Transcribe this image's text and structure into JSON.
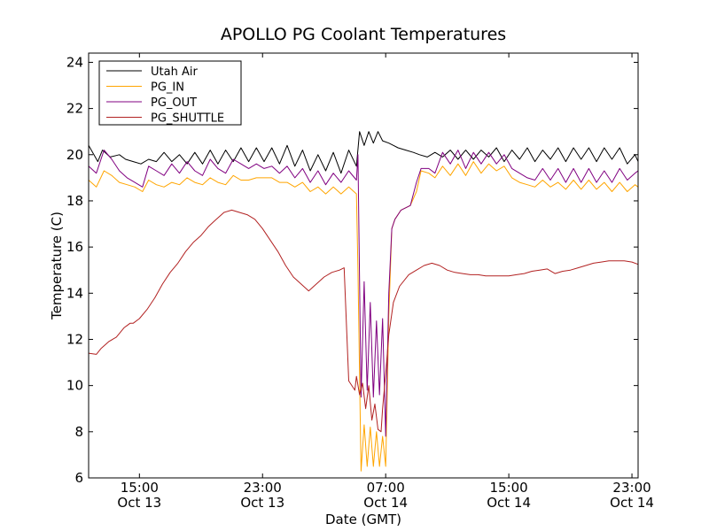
{
  "chart_data": {
    "type": "line",
    "title": "APOLLO PG Coolant Temperatures",
    "xlabel": "Date (GMT)",
    "ylabel": "Temperature (C)",
    "xlim": [
      11.7,
      47.4
    ],
    "ylim": [
      6,
      24.4
    ],
    "x_unit": "hours since Oct 13 00:00 GMT",
    "yticks": [
      6,
      8,
      10,
      12,
      14,
      16,
      18,
      20,
      22,
      24
    ],
    "xticks": [
      {
        "x": 15,
        "line1": "15:00",
        "line2": "Oct 13"
      },
      {
        "x": 23,
        "line1": "23:00",
        "line2": "Oct 13"
      },
      {
        "x": 31,
        "line1": "07:00",
        "line2": "Oct 14"
      },
      {
        "x": 39,
        "line1": "15:00",
        "line2": "Oct 14"
      },
      {
        "x": 47,
        "line1": "23:00",
        "line2": "Oct 14"
      }
    ],
    "legend_position": "top-left",
    "grid": false,
    "series": [
      {
        "name": "Utah Air",
        "color": "#000000",
        "x": [
          11.7,
          12.3,
          12.6,
          13.1,
          13.7,
          14.1,
          14.6,
          15.1,
          15.6,
          16.1,
          16.6,
          17.1,
          17.6,
          18.1,
          18.6,
          19.1,
          19.6,
          20.1,
          20.6,
          21.1,
          21.6,
          22.1,
          22.6,
          23.1,
          23.6,
          24.1,
          24.6,
          25.1,
          25.6,
          26.1,
          26.6,
          27.1,
          27.6,
          28.1,
          28.6,
          29.1,
          29.3,
          29.6,
          29.9,
          30.2,
          30.5,
          30.8,
          31.2,
          31.5,
          31.8,
          32.3,
          32.8,
          33.2,
          33.7,
          34.2,
          34.7,
          35.2,
          35.7,
          36.2,
          36.7,
          37.2,
          37.7,
          38.2,
          38.7,
          39.2,
          39.7,
          40.2,
          40.7,
          41.2,
          41.7,
          42.2,
          42.7,
          43.2,
          43.7,
          44.2,
          44.7,
          45.2,
          45.7,
          46.2,
          46.7,
          47.2,
          47.4
        ],
        "y": [
          20.4,
          19.7,
          20.2,
          19.9,
          20.0,
          19.8,
          19.7,
          19.6,
          19.8,
          19.7,
          20.1,
          19.7,
          20.0,
          19.6,
          20.1,
          19.6,
          20.2,
          19.6,
          20.2,
          19.7,
          20.3,
          19.7,
          20.3,
          19.7,
          20.3,
          19.6,
          20.4,
          19.5,
          20.2,
          19.3,
          20.0,
          19.3,
          20.1,
          19.2,
          20.2,
          19.5,
          21.0,
          20.4,
          21.0,
          20.5,
          21.0,
          20.6,
          20.5,
          20.4,
          20.3,
          20.2,
          20.1,
          20.0,
          19.9,
          20.1,
          19.9,
          20.2,
          19.8,
          20.2,
          19.8,
          20.2,
          19.9,
          20.3,
          19.7,
          20.2,
          19.8,
          20.3,
          19.7,
          20.2,
          19.8,
          20.3,
          19.7,
          20.3,
          19.8,
          20.3,
          19.7,
          20.3,
          19.8,
          20.3,
          19.6,
          20.0,
          19.7
        ]
      },
      {
        "name": "PG_IN",
        "color": "#ffa500",
        "x": [
          11.7,
          12.2,
          12.7,
          13.2,
          13.7,
          14.2,
          14.7,
          15.2,
          15.6,
          16.1,
          16.6,
          17.1,
          17.6,
          18.1,
          18.6,
          19.1,
          19.6,
          20.1,
          20.6,
          21.1,
          21.6,
          22.1,
          22.6,
          23.1,
          23.6,
          24.1,
          24.6,
          25.1,
          25.6,
          26.1,
          26.6,
          27.1,
          27.6,
          28.1,
          28.6,
          29.1,
          29.2,
          29.4,
          29.6,
          29.8,
          30.0,
          30.2,
          30.4,
          30.6,
          30.8,
          31.0,
          31.2,
          31.4,
          31.6,
          32.0,
          32.6,
          33.0,
          33.3,
          33.8,
          34.2,
          34.7,
          35.2,
          35.7,
          36.2,
          36.7,
          37.2,
          37.7,
          38.2,
          38.7,
          39.2,
          39.7,
          40.2,
          40.7,
          41.2,
          41.7,
          42.2,
          42.7,
          43.2,
          43.7,
          44.2,
          44.7,
          45.2,
          45.7,
          46.2,
          46.7,
          47.2,
          47.4
        ],
        "y": [
          18.9,
          18.6,
          19.3,
          19.1,
          18.8,
          18.7,
          18.6,
          18.4,
          18.9,
          18.7,
          18.6,
          18.8,
          18.7,
          19.0,
          18.8,
          18.7,
          19.0,
          18.8,
          18.7,
          19.1,
          18.9,
          18.9,
          19.0,
          19.0,
          19.0,
          18.8,
          18.8,
          18.6,
          18.8,
          18.4,
          18.6,
          18.3,
          18.6,
          18.3,
          18.6,
          18.3,
          15.0,
          6.3,
          8.3,
          6.5,
          8.2,
          6.5,
          8.0,
          6.5,
          7.8,
          6.5,
          13.0,
          16.8,
          17.2,
          17.6,
          17.8,
          18.4,
          19.3,
          19.2,
          19.0,
          19.5,
          19.1,
          19.6,
          19.1,
          19.7,
          19.2,
          19.6,
          19.3,
          19.5,
          19.0,
          18.8,
          18.7,
          18.6,
          18.9,
          18.6,
          18.8,
          18.5,
          18.9,
          18.5,
          18.9,
          18.5,
          18.8,
          18.4,
          18.8,
          18.4,
          18.7,
          18.6
        ]
      },
      {
        "name": "PG_OUT",
        "color": "#800080",
        "x": [
          11.7,
          12.2,
          12.7,
          13.2,
          13.7,
          14.2,
          14.7,
          15.2,
          15.6,
          16.1,
          16.6,
          17.1,
          17.6,
          18.1,
          18.6,
          19.1,
          19.6,
          20.1,
          20.6,
          21.1,
          21.6,
          22.1,
          22.6,
          23.1,
          23.6,
          24.1,
          24.6,
          25.1,
          25.6,
          26.1,
          26.6,
          27.1,
          27.6,
          28.1,
          28.6,
          29.1,
          29.2,
          29.4,
          29.6,
          29.8,
          30.0,
          30.2,
          30.4,
          30.6,
          30.8,
          31.0,
          31.2,
          31.4,
          31.6,
          32.0,
          32.6,
          33.0,
          33.3,
          33.8,
          34.2,
          34.7,
          35.2,
          35.7,
          36.2,
          36.7,
          37.2,
          37.7,
          38.2,
          38.7,
          39.2,
          39.7,
          40.2,
          40.7,
          41.2,
          41.7,
          42.2,
          42.7,
          43.2,
          43.7,
          44.2,
          44.7,
          45.2,
          45.7,
          46.2,
          46.7,
          47.2,
          47.4
        ],
        "y": [
          19.5,
          19.2,
          20.2,
          19.8,
          19.3,
          19.0,
          18.8,
          18.6,
          19.5,
          19.3,
          19.1,
          19.6,
          19.2,
          19.7,
          19.3,
          19.1,
          19.8,
          19.4,
          19.2,
          19.8,
          19.6,
          19.4,
          19.6,
          19.4,
          19.5,
          19.2,
          19.5,
          19.0,
          19.4,
          18.8,
          19.3,
          18.7,
          19.2,
          18.8,
          19.3,
          18.9,
          20.0,
          9.5,
          14.5,
          9.8,
          13.6,
          9.5,
          12.8,
          9.6,
          12.9,
          7.8,
          14.0,
          16.8,
          17.2,
          17.6,
          17.8,
          18.8,
          19.4,
          19.4,
          19.2,
          20.1,
          19.6,
          20.2,
          19.4,
          20.1,
          19.6,
          20.1,
          19.6,
          20.0,
          19.4,
          19.2,
          19.0,
          18.9,
          19.4,
          18.9,
          19.4,
          18.8,
          19.4,
          18.8,
          19.4,
          18.8,
          19.3,
          18.8,
          19.4,
          18.9,
          19.2,
          19.3
        ]
      },
      {
        "name": "PG_SHUTTLE",
        "color": "#b22222",
        "x": [
          11.7,
          12.2,
          12.5,
          13.0,
          13.5,
          14.0,
          14.2,
          14.4,
          14.6,
          15.0,
          15.5,
          16.0,
          16.5,
          17.0,
          17.5,
          18.0,
          18.5,
          19.0,
          19.5,
          20.0,
          20.5,
          21.0,
          21.5,
          22.0,
          22.5,
          23.0,
          23.5,
          24.0,
          24.5,
          25.0,
          25.5,
          26.0,
          26.5,
          27.0,
          27.5,
          28.0,
          28.3,
          28.6,
          29.0,
          29.1,
          29.3,
          29.5,
          29.7,
          29.9,
          30.1,
          30.3,
          30.5,
          30.7,
          30.8,
          31.0,
          31.2,
          31.5,
          31.9,
          32.5,
          33.0,
          33.5,
          34.0,
          34.5,
          35.0,
          35.5,
          36.0,
          36.5,
          37.0,
          37.5,
          38.0,
          38.5,
          39.0,
          39.5,
          40.0,
          40.5,
          41.0,
          41.5,
          42.0,
          42.5,
          43.0,
          43.5,
          44.0,
          44.5,
          45.0,
          45.5,
          46.0,
          46.5,
          47.0,
          47.4
        ],
        "y": [
          11.4,
          11.35,
          11.6,
          11.9,
          12.1,
          12.5,
          12.6,
          12.7,
          12.7,
          12.9,
          13.3,
          13.8,
          14.4,
          14.9,
          15.3,
          15.8,
          16.2,
          16.5,
          16.9,
          17.2,
          17.5,
          17.6,
          17.5,
          17.4,
          17.2,
          16.8,
          16.3,
          15.8,
          15.2,
          14.7,
          14.4,
          14.1,
          14.4,
          14.7,
          14.9,
          15.0,
          15.1,
          10.2,
          9.8,
          10.4,
          9.6,
          10.1,
          9.0,
          10.0,
          8.5,
          9.2,
          8.1,
          8.0,
          9.0,
          10.5,
          12.2,
          13.6,
          14.3,
          14.8,
          15.0,
          15.2,
          15.3,
          15.2,
          15.0,
          14.9,
          14.85,
          14.8,
          14.8,
          14.75,
          14.75,
          14.75,
          14.75,
          14.8,
          14.85,
          14.95,
          15.0,
          15.05,
          14.85,
          14.95,
          15.0,
          15.1,
          15.2,
          15.3,
          15.35,
          15.4,
          15.4,
          15.4,
          15.35,
          15.25
        ]
      }
    ]
  }
}
